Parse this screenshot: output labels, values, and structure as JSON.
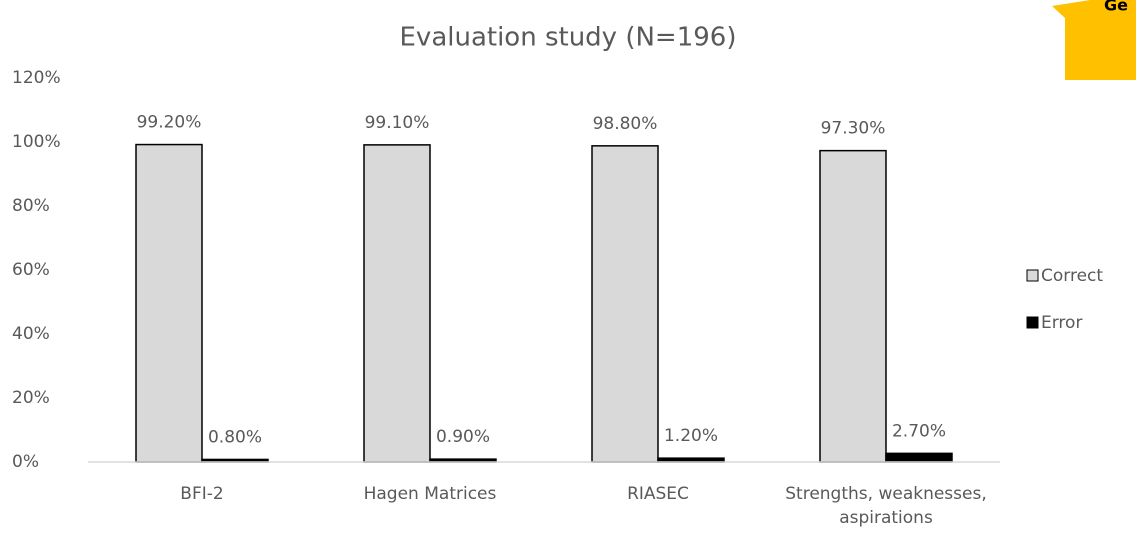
{
  "chart_data": {
    "type": "bar",
    "title": "Evaluation study (N=196)",
    "categories": [
      "BFI-2",
      "Hagen Matrices",
      "RIASEC",
      "Strengths, weaknesses, aspirations"
    ],
    "series": [
      {
        "name": "Correct",
        "color": "#d9d9d9",
        "values": [
          99.2,
          99.1,
          98.8,
          97.3
        ],
        "value_labels": [
          "99.20%",
          "99.10%",
          "98.80%",
          "97.30%"
        ]
      },
      {
        "name": "Error",
        "color": "#000000",
        "values": [
          0.8,
          0.9,
          1.2,
          2.7
        ],
        "value_labels": [
          "0.80%",
          "0.90%",
          "1.20%",
          "2.70%"
        ]
      }
    ],
    "ylim": [
      0,
      120
    ],
    "yticks": [
      {
        "value": 0,
        "label": "0%"
      },
      {
        "value": 20,
        "label": "20%"
      },
      {
        "value": 40,
        "label": "40%"
      },
      {
        "value": 60,
        "label": "60%"
      },
      {
        "value": 80,
        "label": "80%"
      },
      {
        "value": 100,
        "label": "100%"
      },
      {
        "value": 120,
        "label": "120%"
      }
    ],
    "grid": false,
    "legend": "right",
    "annotation": "Ge"
  }
}
